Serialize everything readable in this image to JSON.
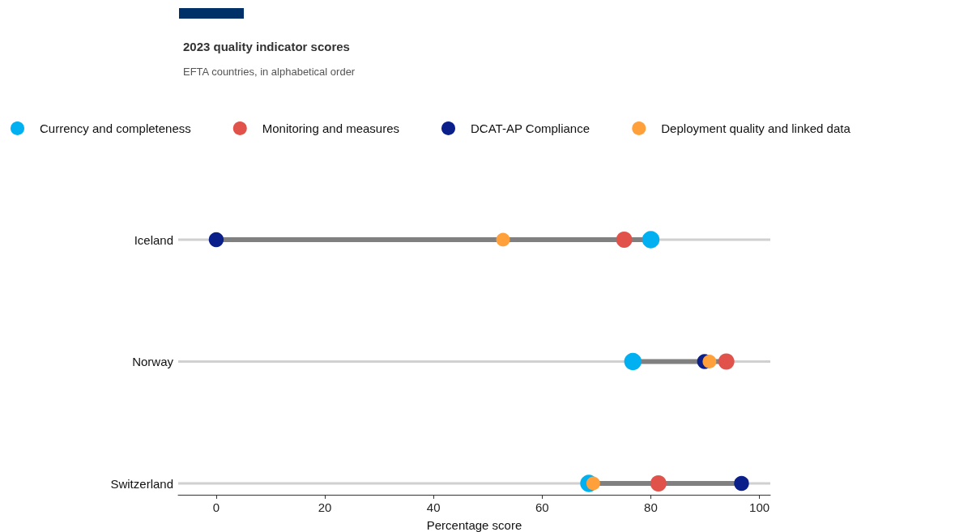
{
  "chart_data": {
    "type": "scatter",
    "title": "2023 quality indicator scores",
    "subtitle": "EFTA countries, in alphabetical order",
    "xlabel": "Percentage score",
    "orientation": "horizontal",
    "categories": [
      "Iceland",
      "Norway",
      "Switzerland"
    ],
    "series": [
      {
        "name": "Currency and completeness",
        "color": "#00b0f0",
        "values": [
          80.0,
          76.7,
          68.6
        ]
      },
      {
        "name": "Monitoring and measures",
        "color": "#e0524a",
        "values": [
          75.1,
          93.9,
          81.4
        ]
      },
      {
        "name": "DCAT-AP Compliance",
        "color": "#0a1f8a",
        "values": [
          0.0,
          89.9,
          96.7
        ]
      },
      {
        "name": "Deployment quality and linked data",
        "color": "#ffa03a",
        "values": [
          52.8,
          90.8,
          69.4
        ]
      }
    ],
    "xlim": [
      -7,
      102
    ],
    "xticks": [
      0,
      20,
      40,
      60,
      80,
      100
    ],
    "grid": "y",
    "legend": "top left",
    "marker": "circle"
  }
}
